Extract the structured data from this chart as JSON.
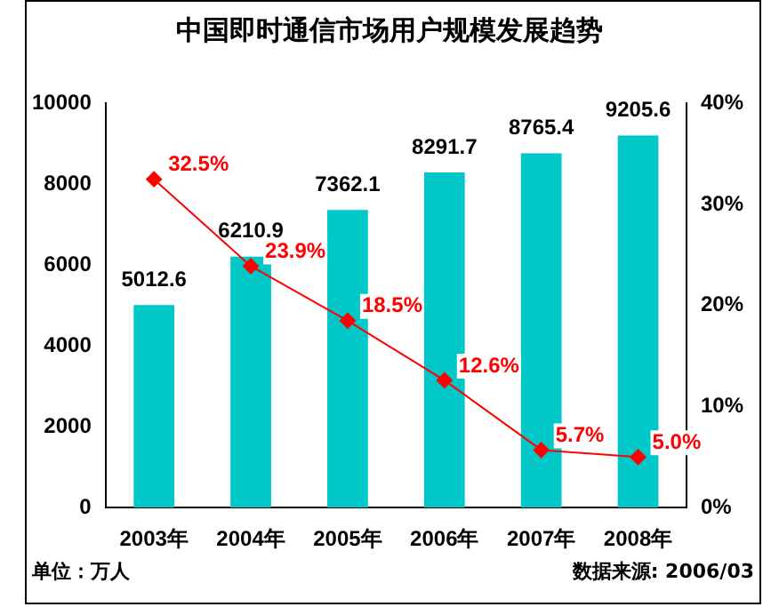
{
  "chart_data": {
    "type": "bar",
    "title": "中国即时通信市场用户规模发展趋势",
    "categories": [
      "2003年",
      "2004年",
      "2005年",
      "2006年",
      "2007年",
      "2008年"
    ],
    "series": [
      {
        "color": "#00c8c8",
        "values": [
          5012.6,
          6210.9,
          7362.1,
          8291.7,
          8765.4,
          9205.6
        ],
        "value_labels": [
          "5012.6",
          "6210.9",
          "7362.1",
          "8291.7",
          "8765.4",
          "9205.6"
        ]
      },
      {
        "type": "line",
        "axis": "y2",
        "color": "#ff0000",
        "marker": "diamond",
        "values": [
          32.5,
          23.9,
          18.5,
          12.6,
          5.7,
          5.0
        ],
        "value_labels": [
          "32.5%",
          "23.9%",
          "18.5%",
          "12.6%",
          "5.7%",
          "5.0%"
        ]
      }
    ],
    "ylim": [
      0,
      10000
    ],
    "yticks": [
      0,
      2000,
      4000,
      6000,
      8000,
      10000
    ],
    "y2lim": [
      0,
      40
    ],
    "y2ticks": [
      {
        "value": 0,
        "label": "0%"
      },
      {
        "value": 10,
        "label": "10%"
      },
      {
        "value": 20,
        "label": "20%"
      },
      {
        "value": 30,
        "label": "30%"
      },
      {
        "value": 40,
        "label": "40%"
      }
    ],
    "grid": false,
    "legend": false,
    "annotations": [
      "单位：万人",
      "数据来源: 2006/03"
    ]
  }
}
